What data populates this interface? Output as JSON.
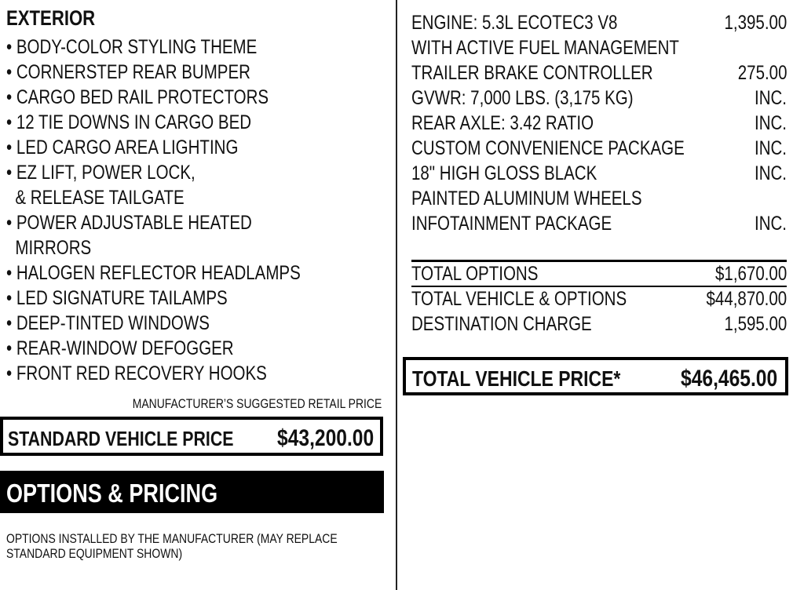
{
  "exterior": {
    "heading": "EXTERIOR",
    "items": [
      "• BODY-COLOR STYLING THEME",
      "• CORNERSTEP REAR BUMPER",
      "• CARGO BED RAIL PROTECTORS",
      "• 12 TIE DOWNS IN CARGO BED",
      "• LED CARGO AREA LIGHTING",
      "• EZ LIFT, POWER LOCK,",
      "  & RELEASE TAILGATE",
      "• POWER ADJUSTABLE HEATED",
      "  MIRRORS",
      "• HALOGEN REFLECTOR HEADLAMPS",
      "• LED SIGNATURE TAILAMPS",
      "• DEEP-TINTED WINDOWS",
      "• REAR-WINDOW DEFOGGER",
      "• FRONT RED RECOVERY HOOKS"
    ]
  },
  "msrp_label": "MANUFACTURER’S SUGGESTED RETAIL PRICE",
  "standard_price": {
    "label": "STANDARD VEHICLE PRICE",
    "value": "$43,200.00"
  },
  "options_heading": "OPTIONS & PRICING",
  "options_note": [
    "OPTIONS INSTALLED BY THE MANUFACTURER (MAY REPLACE",
    "STANDARD EQUIPMENT SHOWN)"
  ],
  "options": [
    {
      "label": "ENGINE:  5.3L ECOTEC3 V8",
      "price": "1,395.00"
    },
    {
      "label": "WITH ACTIVE FUEL MANAGEMENT",
      "price": ""
    },
    {
      "label": "TRAILER BRAKE CONTROLLER",
      "price": "275.00"
    },
    {
      "label": "GVWR: 7,000 LBS. (3,175 KG)",
      "price": "INC."
    },
    {
      "label": "REAR AXLE:  3.42 RATIO",
      "price": "INC."
    },
    {
      "label": "CUSTOM CONVENIENCE PACKAGE",
      "price": "INC."
    },
    {
      "label": "18\" HIGH GLOSS BLACK",
      "price": "INC."
    },
    {
      "label": "PAINTED ALUMINUM WHEELS",
      "price": ""
    },
    {
      "label": "INFOTAINMENT PACKAGE",
      "price": "INC."
    }
  ],
  "totals": [
    {
      "label": "TOTAL OPTIONS",
      "value": "$1,670.00"
    },
    {
      "label": "TOTAL VEHICLE & OPTIONS",
      "value": "$44,870.00"
    },
    {
      "label": "DESTINATION CHARGE",
      "value": "1,595.00"
    }
  ],
  "total_price": {
    "label": "TOTAL VEHICLE PRICE*",
    "value": "$46,465.00"
  }
}
